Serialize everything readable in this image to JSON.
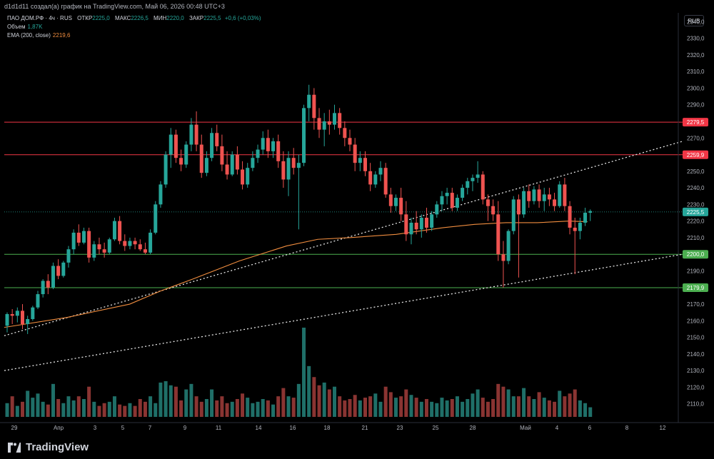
{
  "header": {
    "caption": "d1d1d11 создал(а) график на TradingView.com, Май 06, 2026 00:48 UTC+3"
  },
  "legend": {
    "symbol": "ПАО ДОМ.РФ · 4ч · RUS",
    "open_label": "ОТКР",
    "open": "2225,0",
    "high_label": "МАКС",
    "high": "2226,5",
    "low_label": "МИН",
    "low": "2220,0",
    "close_label": "ЗАКР",
    "close": "2225,5",
    "change": "+0,6 (+0,03%)",
    "volume_label": "Объем",
    "volume": "1,87K",
    "ema_label": "EMA (200, close)",
    "ema": "2219,6"
  },
  "currency_button": "RUB",
  "footer": {
    "brand": "TradingView"
  },
  "colors": {
    "up": "#26a69a",
    "down": "#ef5350",
    "resistance": "#f23645",
    "support": "#4caf50",
    "ema": "#f08d3f",
    "background": "#000000"
  },
  "chart_data": {
    "type": "candlestick",
    "title": "ПАО ДОМ.РФ · 4ч · RUS",
    "y_axis_ticks": [
      "2340,0",
      "2330,0",
      "2320,0",
      "2310,0",
      "2300,0",
      "2290,0",
      "2280,0",
      "2270,0",
      "2260,0",
      "2250,0",
      "2240,0",
      "2230,0",
      "2220,0",
      "2210,0",
      "2200,0",
      "2190,0",
      "2180,0",
      "2170,0",
      "2160,0",
      "2150,0",
      "2140,0",
      "2130,0",
      "2120,0",
      "2110,0"
    ],
    "ylim": [
      2103,
      2344
    ],
    "x_axis_ticks": [
      "29",
      "Апр",
      "3",
      "5",
      "7",
      "9",
      "11",
      "14",
      "16",
      "18",
      "21",
      "23",
      "25",
      "28",
      "Май",
      "4",
      "6",
      "8",
      "12"
    ],
    "horizontal_levels": [
      {
        "value": 2279.5,
        "label": "2279,5",
        "kind": "resistance"
      },
      {
        "value": 2259.9,
        "label": "2259,9",
        "kind": "resistance"
      },
      {
        "value": 2200.0,
        "label": "2200,0",
        "kind": "support"
      },
      {
        "value": 2179.9,
        "label": "2179,9",
        "kind": "support"
      }
    ],
    "last_price": {
      "value": 2225.5,
      "label": "2225,5"
    },
    "trendlines": [
      {
        "from": [
          0,
          2151
        ],
        "to": [
          200,
          2268
        ]
      },
      {
        "from": [
          0,
          2130
        ],
        "to": [
          200,
          2200
        ]
      }
    ],
    "ema_200": [
      [
        0,
        2156
      ],
      [
        20,
        2162
      ],
      [
        40,
        2170
      ],
      [
        50,
        2178
      ],
      [
        60,
        2185
      ],
      [
        75,
        2196
      ],
      [
        90,
        2205
      ],
      [
        100,
        2209
      ],
      [
        110,
        2210
      ],
      [
        125,
        2212
      ],
      [
        140,
        2216
      ],
      [
        150,
        2218
      ],
      [
        160,
        2219
      ],
      [
        170,
        2219
      ],
      [
        180,
        2220
      ],
      [
        186,
        2219.6
      ]
    ],
    "candles": [
      [
        2157,
        2165,
        2153,
        2164
      ],
      [
        2164,
        2167,
        2158,
        2163
      ],
      [
        2163,
        2168,
        2159,
        2166
      ],
      [
        2166,
        2170,
        2155,
        2158
      ],
      [
        2158,
        2163,
        2152,
        2161
      ],
      [
        2161,
        2169,
        2160,
        2168
      ],
      [
        2168,
        2178,
        2167,
        2176
      ],
      [
        2176,
        2185,
        2174,
        2184
      ],
      [
        2184,
        2188,
        2176,
        2180
      ],
      [
        2180,
        2195,
        2179,
        2193
      ],
      [
        2193,
        2197,
        2185,
        2187
      ],
      [
        2187,
        2196,
        2186,
        2195
      ],
      [
        2195,
        2205,
        2192,
        2203
      ],
      [
        2203,
        2215,
        2200,
        2213
      ],
      [
        2213,
        2218,
        2205,
        2207
      ],
      [
        2207,
        2216,
        2206,
        2214
      ],
      [
        2214,
        2216,
        2195,
        2198
      ],
      [
        2198,
        2208,
        2196,
        2206
      ],
      [
        2206,
        2210,
        2200,
        2203
      ],
      [
        2203,
        2207,
        2198,
        2201
      ],
      [
        2201,
        2210,
        2200,
        2209
      ],
      [
        2209,
        2222,
        2208,
        2220
      ],
      [
        2220,
        2223,
        2206,
        2208
      ],
      [
        2208,
        2212,
        2202,
        2205
      ],
      [
        2205,
        2210,
        2203,
        2208
      ],
      [
        2208,
        2210,
        2203,
        2206
      ],
      [
        2206,
        2209,
        2202,
        2203
      ],
      [
        2203,
        2207,
        2200,
        2201
      ],
      [
        2201,
        2215,
        2200,
        2213
      ],
      [
        2213,
        2232,
        2212,
        2230
      ],
      [
        2230,
        2244,
        2228,
        2242
      ],
      [
        2242,
        2262,
        2240,
        2260
      ],
      [
        2260,
        2276,
        2252,
        2272
      ],
      [
        2272,
        2275,
        2255,
        2258
      ],
      [
        2258,
        2263,
        2250,
        2254
      ],
      [
        2254,
        2268,
        2252,
        2266
      ],
      [
        2266,
        2282,
        2262,
        2278
      ],
      [
        2278,
        2286,
        2262,
        2266
      ],
      [
        2266,
        2272,
        2246,
        2249
      ],
      [
        2249,
        2262,
        2247,
        2258
      ],
      [
        2258,
        2276,
        2256,
        2273
      ],
      [
        2273,
        2278,
        2262,
        2265
      ],
      [
        2265,
        2272,
        2250,
        2254
      ],
      [
        2254,
        2262,
        2245,
        2248
      ],
      [
        2248,
        2262,
        2247,
        2260
      ],
      [
        2260,
        2265,
        2248,
        2251
      ],
      [
        2251,
        2256,
        2239,
        2242
      ],
      [
        2242,
        2255,
        2240,
        2252
      ],
      [
        2252,
        2262,
        2250,
        2258
      ],
      [
        2258,
        2266,
        2255,
        2263
      ],
      [
        2263,
        2274,
        2260,
        2270
      ],
      [
        2270,
        2275,
        2258,
        2262
      ],
      [
        2262,
        2270,
        2258,
        2268
      ],
      [
        2268,
        2272,
        2252,
        2256
      ],
      [
        2256,
        2262,
        2240,
        2245
      ],
      [
        2245,
        2262,
        2235,
        2258
      ],
      [
        2258,
        2264,
        2248,
        2252
      ],
      [
        2252,
        2260,
        2215,
        2255
      ],
      [
        2255,
        2290,
        2253,
        2288
      ],
      [
        2288,
        2302,
        2280,
        2296
      ],
      [
        2296,
        2300,
        2275,
        2282
      ],
      [
        2282,
        2288,
        2270,
        2275
      ],
      [
        2275,
        2285,
        2265,
        2280
      ],
      [
        2280,
        2287,
        2272,
        2278
      ],
      [
        2278,
        2290,
        2275,
        2285
      ],
      [
        2285,
        2288,
        2272,
        2276
      ],
      [
        2276,
        2280,
        2265,
        2270
      ],
      [
        2270,
        2275,
        2262,
        2266
      ],
      [
        2266,
        2270,
        2250,
        2255
      ],
      [
        2255,
        2262,
        2250,
        2258
      ],
      [
        2258,
        2262,
        2247,
        2250
      ],
      [
        2250,
        2255,
        2238,
        2242
      ],
      [
        2242,
        2250,
        2240,
        2248
      ],
      [
        2248,
        2256,
        2244,
        2252
      ],
      [
        2252,
        2255,
        2234,
        2236
      ],
      [
        2236,
        2240,
        2225,
        2229
      ],
      [
        2229,
        2236,
        2226,
        2234
      ],
      [
        2234,
        2240,
        2220,
        2224
      ],
      [
        2224,
        2232,
        2208,
        2212
      ],
      [
        2212,
        2222,
        2206,
        2219
      ],
      [
        2219,
        2226,
        2212,
        2215
      ],
      [
        2215,
        2224,
        2210,
        2222
      ],
      [
        2222,
        2228,
        2213,
        2216
      ],
      [
        2216,
        2226,
        2214,
        2224
      ],
      [
        2224,
        2232,
        2222,
        2230
      ],
      [
        2230,
        2238,
        2226,
        2235
      ],
      [
        2235,
        2240,
        2230,
        2237
      ],
      [
        2237,
        2240,
        2226,
        2228
      ],
      [
        2228,
        2236,
        2226,
        2234
      ],
      [
        2234,
        2242,
        2232,
        2240
      ],
      [
        2240,
        2246,
        2236,
        2244
      ],
      [
        2244,
        2248,
        2238,
        2246
      ],
      [
        2246,
        2256,
        2243,
        2248
      ],
      [
        2248,
        2250,
        2230,
        2233
      ],
      [
        2233,
        2236,
        2220,
        2229
      ],
      [
        2229,
        2233,
        2220,
        2224
      ],
      [
        2224,
        2232,
        2196,
        2200
      ],
      [
        2200,
        2208,
        2180,
        2196
      ],
      [
        2196,
        2215,
        2194,
        2214
      ],
      [
        2214,
        2235,
        2212,
        2233
      ],
      [
        2233,
        2236,
        2186,
        2224
      ],
      [
        2224,
        2240,
        2222,
        2238
      ],
      [
        2238,
        2242,
        2228,
        2232
      ],
      [
        2232,
        2241,
        2230,
        2239
      ],
      [
        2239,
        2242,
        2228,
        2232
      ],
      [
        2232,
        2240,
        2226,
        2236
      ],
      [
        2236,
        2240,
        2229,
        2233
      ],
      [
        2233,
        2237,
        2226,
        2229
      ],
      [
        2229,
        2244,
        2228,
        2242
      ],
      [
        2242,
        2246,
        2226,
        2229
      ],
      [
        2229,
        2232,
        2212,
        2216
      ],
      [
        2216,
        2222,
        2188,
        2214
      ],
      [
        2214,
        2222,
        2209,
        2219
      ],
      [
        2219,
        2228,
        2217,
        2225
      ],
      [
        2225,
        2227,
        2220,
        2226
      ]
    ],
    "volumes": [
      20,
      30,
      16,
      22,
      38,
      28,
      34,
      22,
      18,
      48,
      26,
      20,
      30,
      24,
      30,
      26,
      44,
      22,
      16,
      20,
      22,
      30,
      18,
      16,
      20,
      16,
      26,
      22,
      30,
      20,
      50,
      52,
      46,
      44,
      24,
      40,
      48,
      30,
      22,
      26,
      40,
      24,
      30,
      20,
      22,
      26,
      34,
      28,
      20,
      22,
      26,
      24,
      18,
      30,
      42,
      30,
      28,
      48,
      130,
      74,
      58,
      46,
      50,
      40,
      44,
      30,
      24,
      26,
      32,
      24,
      28,
      30,
      34,
      22,
      44,
      36,
      28,
      30,
      40,
      32,
      28,
      22,
      26,
      22,
      20,
      28,
      24,
      26,
      30,
      22,
      26,
      34,
      40,
      28,
      22,
      26,
      48,
      44,
      40,
      30,
      30,
      42,
      30,
      26,
      36,
      28,
      24,
      22,
      38,
      30,
      34,
      40,
      24,
      20,
      14
    ]
  }
}
